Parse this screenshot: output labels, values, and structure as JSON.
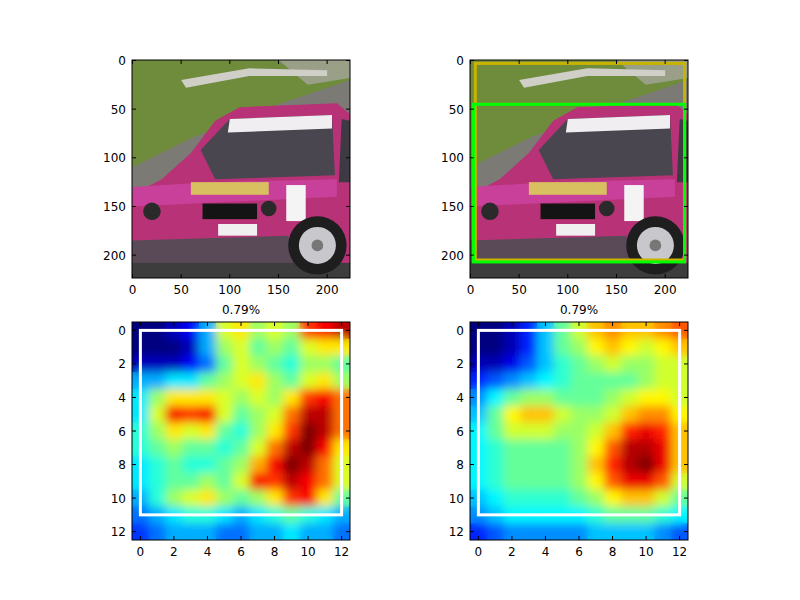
{
  "chart_data": [
    {
      "type": "image",
      "xlim": [
        -0.5,
        223.5
      ],
      "ylim": [
        223.5,
        -0.5
      ],
      "xticks": [
        0,
        50,
        100,
        150,
        200
      ],
      "yticks": [
        0,
        50,
        100,
        150,
        200
      ]
    },
    {
      "type": "image",
      "xlim": [
        -0.5,
        223.5
      ],
      "ylim": [
        223.5,
        -0.5
      ],
      "xticks": [
        0,
        50,
        100,
        150,
        200
      ],
      "yticks": [
        0,
        50,
        100,
        150,
        200
      ],
      "boxes": [
        {
          "color": "#c8b400",
          "x0": 5,
          "y0": 3,
          "x1": 220,
          "y1": 205
        },
        {
          "color": "#00ff00",
          "x0": 3,
          "y0": 45,
          "x1": 220,
          "y1": 207
        }
      ]
    },
    {
      "type": "heatmap",
      "title": "0.79%",
      "xlim": [
        -0.5,
        12.5
      ],
      "ylim": [
        12.5,
        -0.5
      ],
      "xticks": [
        0,
        2,
        4,
        6,
        8,
        10,
        12
      ],
      "yticks": [
        0,
        2,
        4,
        6,
        8,
        10,
        12
      ],
      "cells": [
        [
          0.05,
          0.05,
          0.1,
          0.15,
          0.3,
          0.55,
          0.6,
          0.5,
          0.55,
          0.5,
          0.75,
          0.8,
          0.85
        ],
        [
          0.05,
          0.05,
          0.05,
          0.1,
          0.3,
          0.5,
          0.55,
          0.45,
          0.5,
          0.45,
          0.55,
          0.6,
          0.6
        ],
        [
          0.1,
          0.1,
          0.1,
          0.15,
          0.25,
          0.45,
          0.55,
          0.5,
          0.45,
          0.4,
          0.5,
          0.5,
          0.45
        ],
        [
          0.3,
          0.3,
          0.35,
          0.35,
          0.45,
          0.5,
          0.55,
          0.6,
          0.5,
          0.45,
          0.55,
          0.6,
          0.5
        ],
        [
          0.35,
          0.5,
          0.6,
          0.6,
          0.6,
          0.55,
          0.5,
          0.55,
          0.5,
          0.6,
          0.75,
          0.8,
          0.7
        ],
        [
          0.35,
          0.55,
          0.8,
          0.75,
          0.8,
          0.55,
          0.45,
          0.5,
          0.55,
          0.7,
          0.85,
          0.85,
          0.7
        ],
        [
          0.4,
          0.5,
          0.6,
          0.55,
          0.6,
          0.45,
          0.4,
          0.5,
          0.6,
          0.75,
          0.9,
          0.85,
          0.7
        ],
        [
          0.4,
          0.45,
          0.5,
          0.45,
          0.45,
          0.4,
          0.45,
          0.55,
          0.7,
          0.85,
          0.9,
          0.8,
          0.6
        ],
        [
          0.35,
          0.4,
          0.45,
          0.4,
          0.4,
          0.45,
          0.5,
          0.65,
          0.8,
          0.9,
          0.85,
          0.7,
          0.55
        ],
        [
          0.35,
          0.4,
          0.45,
          0.45,
          0.5,
          0.45,
          0.55,
          0.8,
          0.75,
          0.85,
          0.8,
          0.7,
          0.55
        ],
        [
          0.3,
          0.4,
          0.5,
          0.55,
          0.6,
          0.5,
          0.45,
          0.5,
          0.6,
          0.75,
          0.8,
          0.6,
          0.45
        ],
        [
          0.25,
          0.3,
          0.35,
          0.4,
          0.4,
          0.35,
          0.3,
          0.35,
          0.4,
          0.45,
          0.4,
          0.35,
          0.3
        ],
        [
          0.2,
          0.25,
          0.3,
          0.3,
          0.3,
          0.25,
          0.25,
          0.3,
          0.3,
          0.35,
          0.3,
          0.3,
          0.25
        ]
      ],
      "boxes": [
        {
          "color": "#ffffff",
          "x0": 0,
          "y0": 0,
          "x1": 12,
          "y1": 11
        }
      ]
    },
    {
      "type": "heatmap",
      "title": "0.79%",
      "xlim": [
        -0.5,
        12.5
      ],
      "ylim": [
        12.5,
        -0.5
      ],
      "xticks": [
        0,
        2,
        4,
        6,
        8,
        10,
        12
      ],
      "yticks": [
        0,
        2,
        4,
        6,
        8,
        10,
        12
      ],
      "cells": [
        [
          0.05,
          0.05,
          0.1,
          0.2,
          0.35,
          0.5,
          0.6,
          0.7,
          0.75,
          0.7,
          0.7,
          0.75,
          0.8
        ],
        [
          0.05,
          0.05,
          0.1,
          0.2,
          0.35,
          0.5,
          0.55,
          0.65,
          0.7,
          0.65,
          0.6,
          0.65,
          0.7
        ],
        [
          0.1,
          0.1,
          0.15,
          0.25,
          0.35,
          0.45,
          0.5,
          0.55,
          0.6,
          0.55,
          0.55,
          0.6,
          0.6
        ],
        [
          0.2,
          0.25,
          0.3,
          0.35,
          0.4,
          0.45,
          0.5,
          0.5,
          0.5,
          0.5,
          0.55,
          0.6,
          0.6
        ],
        [
          0.3,
          0.4,
          0.5,
          0.55,
          0.55,
          0.5,
          0.5,
          0.5,
          0.55,
          0.6,
          0.65,
          0.65,
          0.6
        ],
        [
          0.35,
          0.5,
          0.65,
          0.7,
          0.7,
          0.6,
          0.55,
          0.55,
          0.6,
          0.7,
          0.75,
          0.75,
          0.65
        ],
        [
          0.4,
          0.5,
          0.6,
          0.6,
          0.6,
          0.55,
          0.55,
          0.6,
          0.7,
          0.85,
          0.9,
          0.85,
          0.7
        ],
        [
          0.4,
          0.45,
          0.5,
          0.5,
          0.5,
          0.5,
          0.55,
          0.65,
          0.8,
          0.95,
          0.95,
          0.9,
          0.7
        ],
        [
          0.4,
          0.45,
          0.5,
          0.5,
          0.5,
          0.5,
          0.55,
          0.7,
          0.85,
          0.95,
          1.0,
          0.9,
          0.7
        ],
        [
          0.4,
          0.45,
          0.5,
          0.5,
          0.5,
          0.5,
          0.55,
          0.65,
          0.8,
          0.9,
          0.9,
          0.8,
          0.6
        ],
        [
          0.35,
          0.4,
          0.45,
          0.45,
          0.45,
          0.45,
          0.5,
          0.55,
          0.65,
          0.7,
          0.7,
          0.6,
          0.5
        ],
        [
          0.3,
          0.35,
          0.4,
          0.4,
          0.4,
          0.4,
          0.4,
          0.45,
          0.5,
          0.5,
          0.5,
          0.45,
          0.4
        ],
        [
          0.2,
          0.25,
          0.3,
          0.3,
          0.3,
          0.3,
          0.3,
          0.35,
          0.35,
          0.35,
          0.35,
          0.3,
          0.25
        ]
      ],
      "boxes": [
        {
          "color": "#ffffff",
          "x0": 0,
          "y0": 0,
          "x1": 12,
          "y1": 11
        }
      ]
    }
  ]
}
